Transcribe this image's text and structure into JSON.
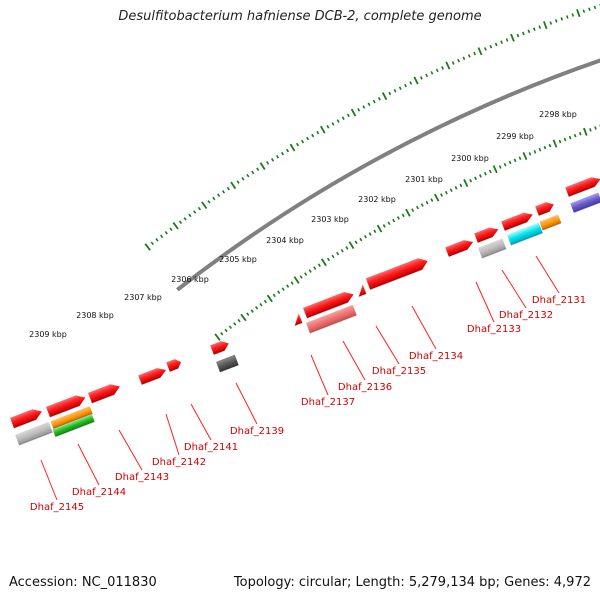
{
  "title": "Desulfitobacterium hafniense DCB-2, complete genome",
  "footer": {
    "accession": "Accession: NC_011830",
    "summary": "Topology: circular; Length: 5,279,134 bp; Genes: 4,972"
  },
  "colors": {
    "gene_red": "#ff1a1a",
    "gene_pink": "#f07070",
    "backbone": "#808080",
    "tick_green": "#1b7a1b",
    "label_red": "#cc0000"
  },
  "kbp_labels": [
    "2298 kbp",
    "2299 kbp",
    "2300 kbp",
    "2301 kbp",
    "2302 kbp",
    "2303 kbp",
    "2304 kbp",
    "2305 kbp",
    "2306 kbp",
    "2307 kbp",
    "2308 kbp",
    "2309 kbp"
  ],
  "gene_labels": [
    "Dhaf_2131",
    "Dhaf_2132",
    "Dhaf_2133",
    "Dhaf_2134",
    "Dhaf_2135",
    "Dhaf_2136",
    "Dhaf_2137",
    "Dhaf_2139",
    "Dhaf_2141",
    "Dhaf_2142",
    "Dhaf_2143",
    "Dhaf_2144",
    "Dhaf_2145"
  ]
}
